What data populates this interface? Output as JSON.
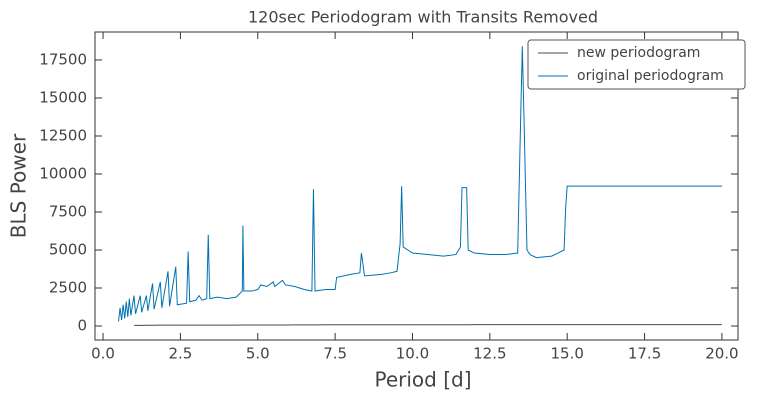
{
  "chart_data": {
    "type": "line",
    "title": "120sec Periodogram with Transits Removed",
    "xlabel": "Period [d]",
    "ylabel": "BLS Power",
    "x": [
      0.5,
      0.55,
      0.6,
      0.65,
      0.7,
      0.75,
      0.8,
      0.85,
      0.9,
      1.0,
      1.05,
      1.2,
      1.25,
      1.4,
      1.45,
      1.6,
      1.65,
      1.85,
      1.9,
      2.1,
      2.15,
      2.35,
      2.4,
      2.7,
      2.75,
      2.8,
      3.0,
      3.1,
      3.2,
      3.35,
      3.4,
      3.45,
      3.7,
      4.0,
      4.3,
      4.5,
      4.52,
      4.55,
      4.8,
      5.0,
      5.1,
      5.3,
      5.5,
      5.55,
      5.8,
      5.9,
      6.2,
      6.5,
      6.75,
      6.8,
      6.85,
      7.2,
      7.5,
      7.55,
      8.0,
      8.3,
      8.35,
      8.45,
      9.0,
      9.3,
      9.5,
      9.6,
      9.65,
      9.7,
      10.0,
      10.5,
      11.0,
      11.4,
      11.55,
      11.6,
      11.75,
      11.8,
      12.0,
      12.5,
      13.0,
      13.4,
      13.5,
      13.55,
      13.6,
      13.7,
      13.8,
      14.0,
      14.5,
      14.8,
      14.9,
      14.95,
      15.0,
      20.0
    ],
    "series": [
      {
        "name": "new periodogram",
        "color": "#3d4d5c",
        "values": [
          null,
          null,
          null,
          null,
          null,
          null,
          null,
          null,
          null,
          40,
          40,
          45,
          45,
          50,
          50,
          50,
          50,
          55,
          55,
          60,
          60,
          60,
          60,
          60,
          60,
          60,
          60,
          60,
          60,
          60,
          60,
          60,
          60,
          60,
          60,
          65,
          65,
          65,
          65,
          70,
          70,
          70,
          70,
          70,
          70,
          70,
          75,
          75,
          75,
          75,
          75,
          80,
          80,
          80,
          80,
          80,
          80,
          80,
          80,
          85,
          85,
          85,
          85,
          85,
          85,
          85,
          85,
          85,
          85,
          85,
          85,
          85,
          90,
          90,
          90,
          90,
          90,
          90,
          90,
          90,
          90,
          90,
          90,
          90,
          90,
          90,
          90,
          90
        ]
      },
      {
        "name": "original periodogram",
        "color": "#0072b2",
        "values": [
          300,
          1200,
          400,
          1400,
          500,
          1600,
          600,
          1800,
          700,
          2000,
          800,
          2000,
          900,
          2000,
          1000,
          2800,
          1100,
          2900,
          1200,
          3600,
          1300,
          3900,
          1400,
          1500,
          4900,
          1600,
          1700,
          2000,
          1700,
          1800,
          6000,
          1800,
          1900,
          1800,
          1900,
          2300,
          6600,
          2300,
          2300,
          2400,
          2700,
          2600,
          2900,
          2600,
          3000,
          2700,
          2600,
          2400,
          2300,
          9000,
          2300,
          2400,
          2400,
          3200,
          3400,
          3500,
          4800,
          3300,
          3400,
          3500,
          3600,
          5400,
          9200,
          5200,
          4800,
          4700,
          4600,
          4700,
          5200,
          9100,
          9100,
          5000,
          4800,
          4700,
          4700,
          4800,
          14000,
          18400,
          14000,
          5000,
          4700,
          4500,
          4600,
          4900,
          5000,
          7800,
          9200,
          9200
        ]
      }
    ],
    "xlim": [
      -0.26,
      20.52
    ],
    "ylim": [
      -920,
      19340
    ],
    "xticks": [
      {
        "value": 0,
        "label": "0.0"
      },
      {
        "value": 2.5,
        "label": "2.5"
      },
      {
        "value": 5,
        "label": "5.0"
      },
      {
        "value": 7.5,
        "label": "7.5"
      },
      {
        "value": 10,
        "label": "10.0"
      },
      {
        "value": 12.5,
        "label": "12.5"
      },
      {
        "value": 15,
        "label": "15.0"
      },
      {
        "value": 17.5,
        "label": "17.5"
      },
      {
        "value": 20,
        "label": "20.0"
      }
    ],
    "yticks": [
      0,
      2500,
      5000,
      7500,
      10000,
      12500,
      15000,
      17500
    ],
    "legend": "upper right",
    "grid": false
  }
}
